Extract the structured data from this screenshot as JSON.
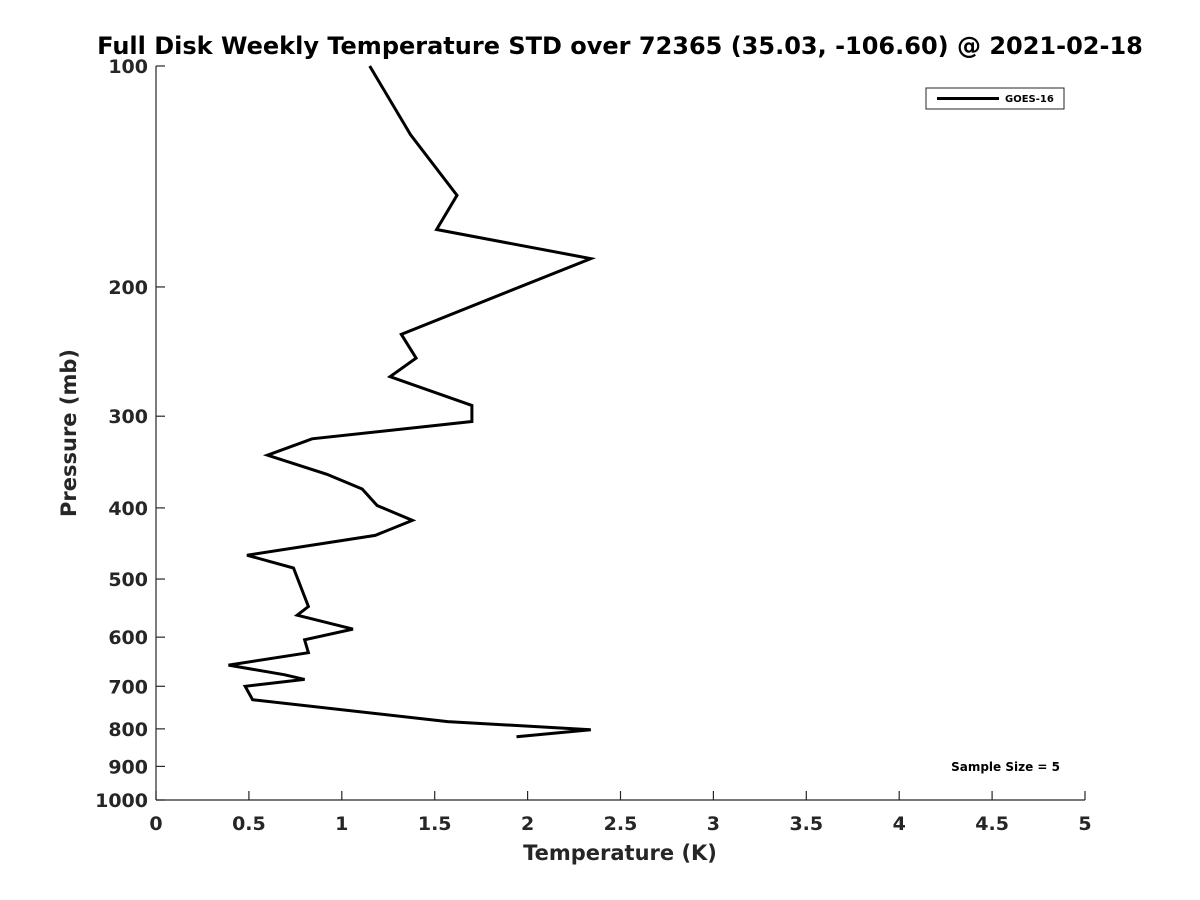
{
  "chart_data": {
    "type": "line",
    "title": "Full Disk Weekly Temperature STD over 72365 (35.03, -106.60) @ 2021-02-18",
    "xlabel": "Temperature (K)",
    "ylabel": "Pressure (mb)",
    "xlim": [
      0,
      5
    ],
    "ylim": [
      100,
      1000
    ],
    "y_scale": "log",
    "y_reversed": true,
    "xticks": [
      0,
      0.5,
      1,
      1.5,
      2,
      2.5,
      3,
      3.5,
      4,
      4.5,
      5
    ],
    "xtick_labels": [
      "0",
      "0.5",
      "1",
      "1.5",
      "2",
      "2.5",
      "3",
      "3.5",
      "4",
      "4.5",
      "5"
    ],
    "yticks": [
      100,
      200,
      300,
      400,
      500,
      600,
      700,
      800,
      900,
      1000
    ],
    "ytick_labels": [
      "100",
      "200",
      "300",
      "400",
      "500",
      "600",
      "700",
      "800",
      "900",
      "1000"
    ],
    "grid": false,
    "legend_position": "top-right",
    "annotation": "Sample Size = 5",
    "series": [
      {
        "name": "GOES-16",
        "color": "#000000",
        "points": [
          [
            1.15,
            100
          ],
          [
            1.37,
            124
          ],
          [
            1.62,
            150
          ],
          [
            1.51,
            167
          ],
          [
            2.34,
            183
          ],
          [
            1.32,
            232
          ],
          [
            1.4,
            250
          ],
          [
            1.26,
            265
          ],
          [
            1.7,
            290
          ],
          [
            1.7,
            305
          ],
          [
            0.84,
            322
          ],
          [
            0.6,
            339
          ],
          [
            0.92,
            360
          ],
          [
            1.11,
            377
          ],
          [
            1.19,
            397
          ],
          [
            1.38,
            416
          ],
          [
            1.18,
            436
          ],
          [
            0.49,
            464
          ],
          [
            0.74,
            483
          ],
          [
            0.82,
            545
          ],
          [
            0.76,
            560
          ],
          [
            1.06,
            585
          ],
          [
            0.8,
            605
          ],
          [
            0.82,
            630
          ],
          [
            0.39,
            655
          ],
          [
            0.69,
            675
          ],
          [
            0.8,
            685
          ],
          [
            0.48,
            700
          ],
          [
            0.52,
            730
          ],
          [
            1.57,
            782
          ],
          [
            2.34,
            802
          ],
          [
            1.94,
            820
          ]
        ]
      }
    ]
  }
}
